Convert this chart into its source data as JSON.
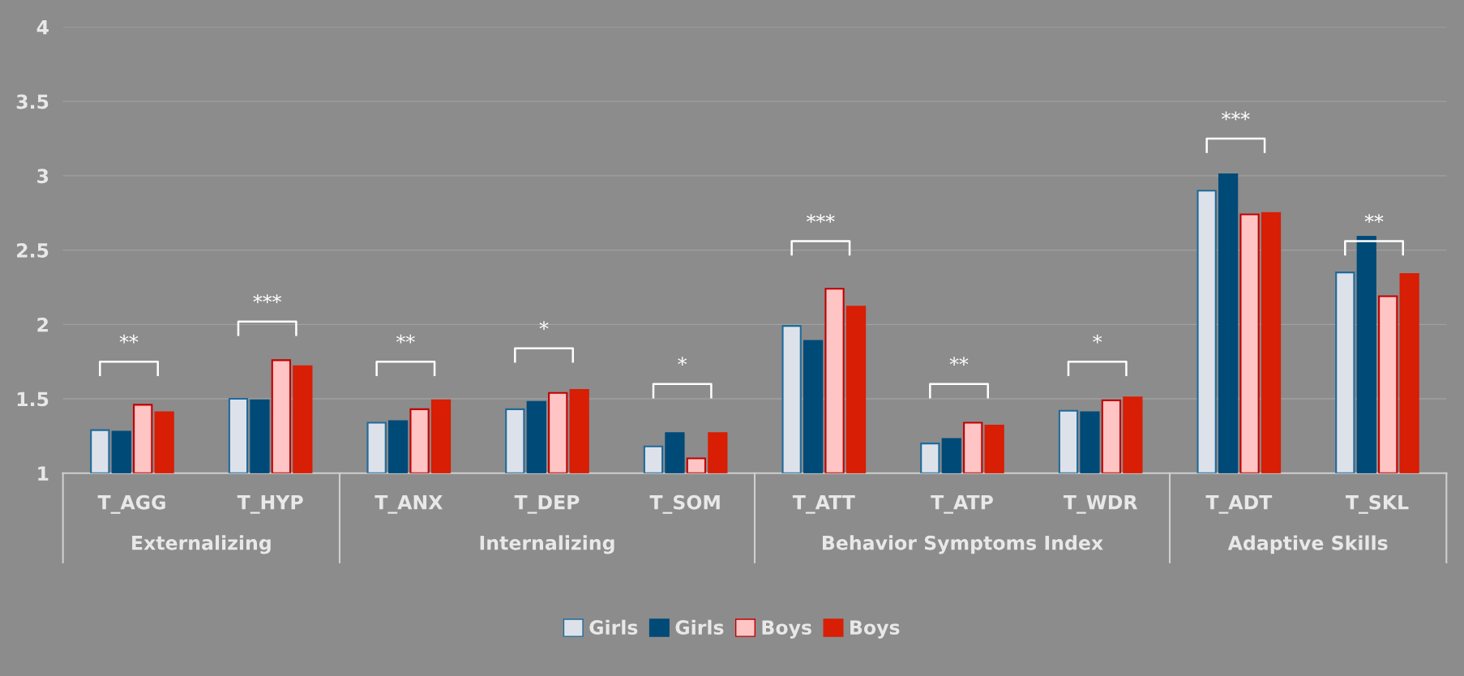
{
  "chart_data": {
    "type": "bar",
    "categories": [
      "T_AGG",
      "T_HYP",
      "T_ANX",
      "T_DEP",
      "T_SOM",
      "T_ATT",
      "T_ATP",
      "T_WDR",
      "T_ADT",
      "T_SKL"
    ],
    "series": [
      {
        "name": "Girls",
        "color": "#dde2ea",
        "values": [
          1.29,
          1.5,
          1.34,
          1.43,
          1.18,
          1.99,
          1.2,
          1.42,
          2.9,
          2.35
        ]
      },
      {
        "name": "Girls",
        "color": "#004a78",
        "values": [
          1.28,
          1.49,
          1.35,
          1.48,
          1.27,
          1.89,
          1.23,
          1.41,
          3.01,
          2.59
        ]
      },
      {
        "name": "Boys",
        "color": "#ffc4c4",
        "values": [
          1.46,
          1.76,
          1.43,
          1.54,
          1.1,
          2.24,
          1.34,
          1.49,
          2.74,
          2.19
        ]
      },
      {
        "name": "Boys",
        "color": "#d81e05",
        "values": [
          1.41,
          1.72,
          1.49,
          1.56,
          1.27,
          2.12,
          1.32,
          1.51,
          2.75,
          2.34
        ]
      }
    ],
    "ylim": [
      1,
      4
    ],
    "yticks": [
      1,
      1.5,
      2,
      2.5,
      3,
      3.5,
      4
    ],
    "grid": "y",
    "legend": "bottom",
    "annotations": [
      "**",
      "***",
      "**",
      "*",
      "*",
      "***",
      "**",
      "*",
      "***",
      "**",
      "Externalizing",
      "Internalizing",
      "Behavior Symptoms Index",
      "Adaptive Skills"
    ]
  }
}
